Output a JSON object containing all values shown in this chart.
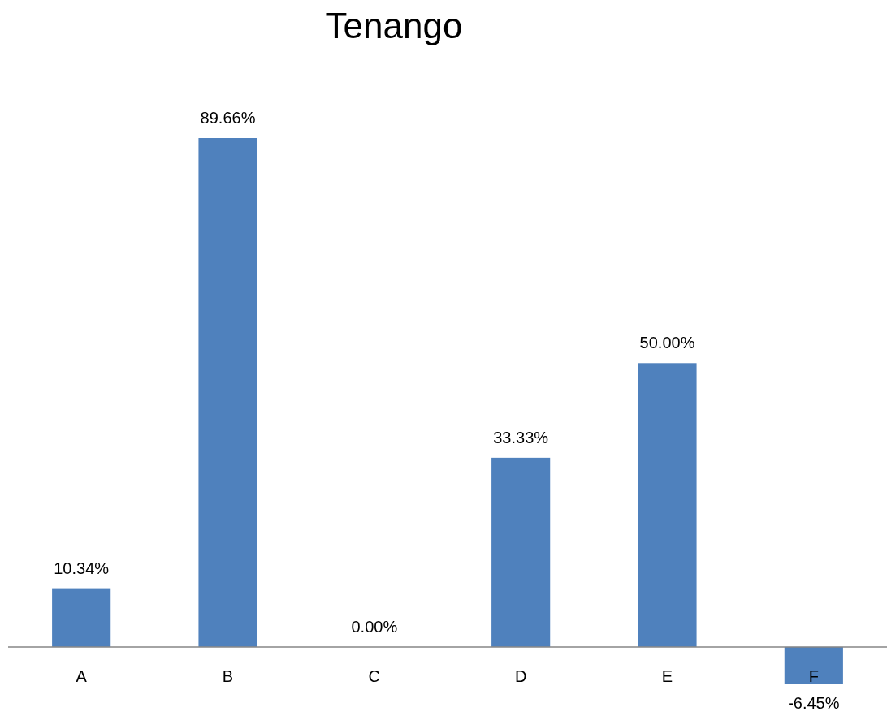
{
  "chart_data": {
    "type": "bar",
    "title": "Tenango",
    "categories": [
      "A",
      "B",
      "C",
      "D",
      "E",
      "F"
    ],
    "values": [
      10.34,
      89.66,
      0,
      33.33,
      50,
      -6.45
    ],
    "value_labels": [
      "10.34%",
      "89.66%",
      "0.00%",
      "33.33%",
      "50.00%",
      "-6.45%"
    ],
    "color": "#4f81bd"
  }
}
